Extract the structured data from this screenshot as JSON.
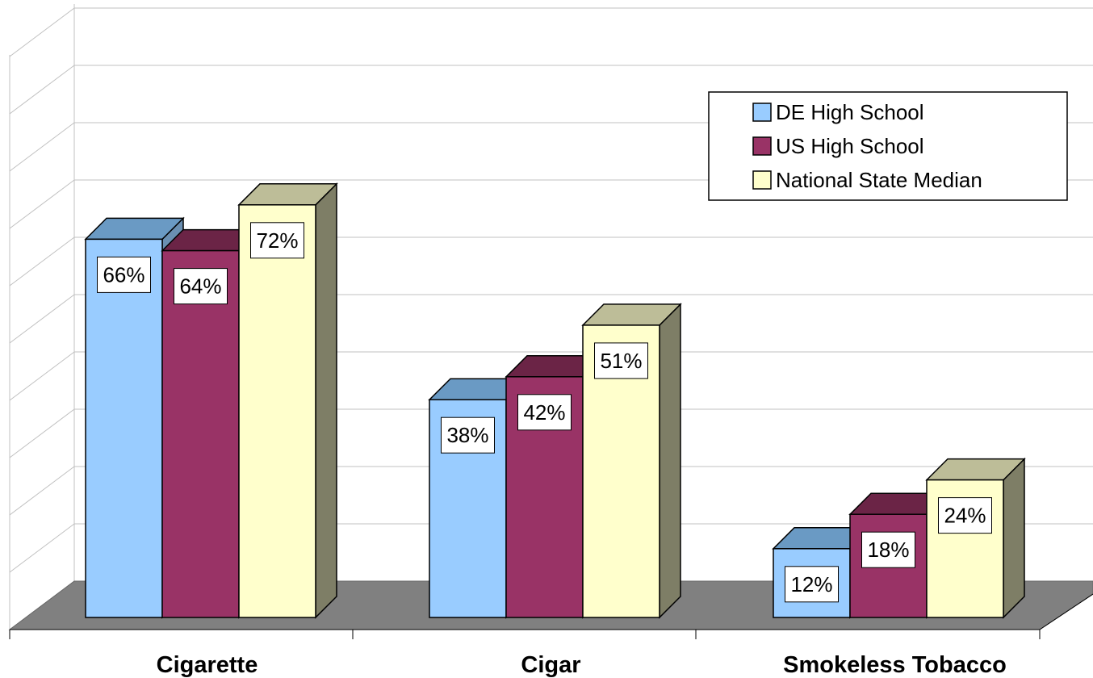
{
  "chart_data": {
    "type": "bar",
    "categories": [
      "Cigarette",
      "Cigar",
      "Smokeless Tobacco"
    ],
    "series": [
      {
        "name": "DE High School",
        "values": [
          66,
          38,
          12
        ],
        "labels": [
          "66%",
          "38%",
          "12%"
        ],
        "color": "#99CCFF",
        "top_color": "#6A9AC4",
        "side_color": "#6A8FB2"
      },
      {
        "name": "US High School",
        "values": [
          64,
          42,
          18
        ],
        "labels": [
          "64%",
          "42%",
          "18%"
        ],
        "color": "#993366",
        "top_color": "#6B2446",
        "side_color": "#6B2446"
      },
      {
        "name": "National State Median",
        "values": [
          72,
          51,
          24
        ],
        "labels": [
          "72%",
          "51%",
          "24%"
        ],
        "color": "#FFFFCC",
        "top_color": "#BDBD98",
        "side_color": "#7E7E66"
      }
    ],
    "ylim": [
      0,
      100
    ],
    "grid": true,
    "legend_position": "top-right",
    "floor_color": "#808080",
    "wall_grid_color": "#C0C0C0"
  }
}
